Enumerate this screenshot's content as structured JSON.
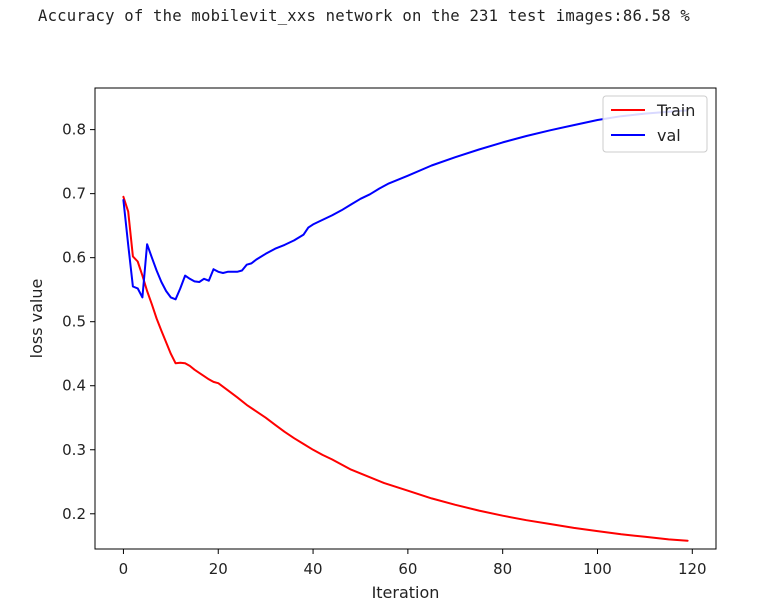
{
  "output": {
    "text": "Accuracy of the mobilevit_xxs network on the 231 test images:86.58 %"
  },
  "chart_data": {
    "type": "line",
    "title": "",
    "xlabel": "Iteration",
    "ylabel": "loss value",
    "xlim": [
      -6,
      125
    ],
    "ylim": [
      0.145,
      0.865
    ],
    "xticks": [
      0,
      20,
      40,
      60,
      80,
      100,
      120
    ],
    "yticks": [
      0.2,
      0.3,
      0.4,
      0.5,
      0.6,
      0.7,
      0.8
    ],
    "grid": false,
    "legend_position": "upper right",
    "series": [
      {
        "name": "Train",
        "color": "#ff0000",
        "points": [
          [
            0,
            0.695
          ],
          [
            1,
            0.672
          ],
          [
            2,
            0.602
          ],
          [
            3,
            0.594
          ],
          [
            4,
            0.572
          ],
          [
            5,
            0.548
          ],
          [
            6,
            0.527
          ],
          [
            7,
            0.505
          ],
          [
            8,
            0.486
          ],
          [
            9,
            0.468
          ],
          [
            10,
            0.45
          ],
          [
            11,
            0.435
          ],
          [
            12,
            0.436
          ],
          [
            13,
            0.435
          ],
          [
            14,
            0.431
          ],
          [
            15,
            0.425
          ],
          [
            16,
            0.42
          ],
          [
            17,
            0.415
          ],
          [
            18,
            0.41
          ],
          [
            19,
            0.406
          ],
          [
            20,
            0.404
          ],
          [
            22,
            0.393
          ],
          [
            24,
            0.382
          ],
          [
            26,
            0.37
          ],
          [
            28,
            0.36
          ],
          [
            30,
            0.35
          ],
          [
            32,
            0.339
          ],
          [
            34,
            0.328
          ],
          [
            36,
            0.318
          ],
          [
            38,
            0.309
          ],
          [
            40,
            0.3
          ],
          [
            42,
            0.292
          ],
          [
            44,
            0.285
          ],
          [
            46,
            0.277
          ],
          [
            48,
            0.269
          ],
          [
            50,
            0.263
          ],
          [
            55,
            0.248
          ],
          [
            60,
            0.236
          ],
          [
            65,
            0.224
          ],
          [
            70,
            0.214
          ],
          [
            75,
            0.205
          ],
          [
            80,
            0.197
          ],
          [
            85,
            0.19
          ],
          [
            90,
            0.184
          ],
          [
            95,
            0.178
          ],
          [
            100,
            0.173
          ],
          [
            105,
            0.168
          ],
          [
            110,
            0.164
          ],
          [
            115,
            0.16
          ],
          [
            119,
            0.158
          ]
        ]
      },
      {
        "name": "val",
        "color": "#0000ff",
        "points": [
          [
            0,
            0.69
          ],
          [
            1,
            0.62
          ],
          [
            2,
            0.555
          ],
          [
            3,
            0.552
          ],
          [
            4,
            0.538
          ],
          [
            5,
            0.621
          ],
          [
            6,
            0.6
          ],
          [
            7,
            0.58
          ],
          [
            8,
            0.562
          ],
          [
            9,
            0.548
          ],
          [
            10,
            0.538
          ],
          [
            11,
            0.535
          ],
          [
            12,
            0.552
          ],
          [
            13,
            0.572
          ],
          [
            14,
            0.567
          ],
          [
            15,
            0.563
          ],
          [
            16,
            0.562
          ],
          [
            17,
            0.567
          ],
          [
            18,
            0.564
          ],
          [
            19,
            0.582
          ],
          [
            20,
            0.578
          ],
          [
            21,
            0.576
          ],
          [
            22,
            0.578
          ],
          [
            24,
            0.578
          ],
          [
            25,
            0.58
          ],
          [
            26,
            0.589
          ],
          [
            27,
            0.591
          ],
          [
            28,
            0.597
          ],
          [
            30,
            0.606
          ],
          [
            32,
            0.614
          ],
          [
            34,
            0.62
          ],
          [
            36,
            0.627
          ],
          [
            38,
            0.636
          ],
          [
            39,
            0.647
          ],
          [
            40,
            0.652
          ],
          [
            42,
            0.659
          ],
          [
            44,
            0.666
          ],
          [
            46,
            0.674
          ],
          [
            48,
            0.683
          ],
          [
            50,
            0.692
          ],
          [
            52,
            0.699
          ],
          [
            54,
            0.708
          ],
          [
            56,
            0.716
          ],
          [
            58,
            0.722
          ],
          [
            60,
            0.728
          ],
          [
            65,
            0.744
          ],
          [
            70,
            0.757
          ],
          [
            75,
            0.769
          ],
          [
            80,
            0.78
          ],
          [
            85,
            0.79
          ],
          [
            90,
            0.799
          ],
          [
            95,
            0.807
          ],
          [
            100,
            0.815
          ],
          [
            105,
            0.821
          ],
          [
            110,
            0.825
          ],
          [
            115,
            0.828
          ],
          [
            119,
            0.83
          ]
        ]
      }
    ]
  }
}
